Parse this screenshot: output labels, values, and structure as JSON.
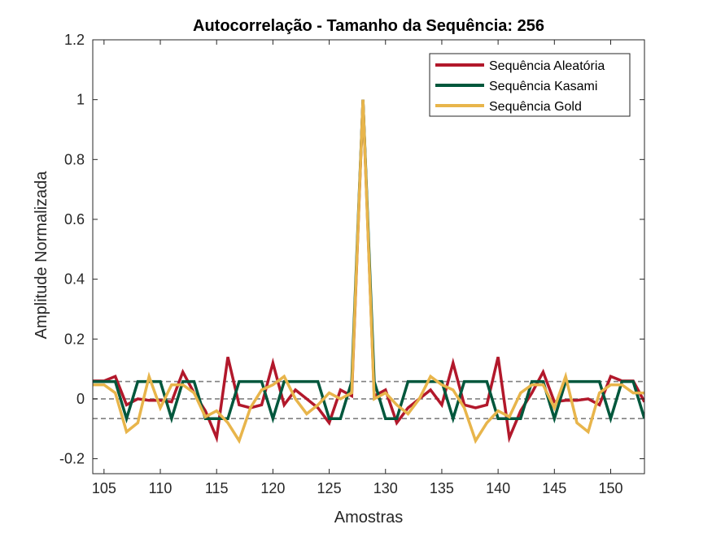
{
  "chart_data": {
    "type": "line",
    "title": "Autocorrelação - Tamanho da Sequência: 256",
    "xlabel": "Amostras",
    "ylabel": "Amplitude Normalizada",
    "xlim": [
      104,
      153
    ],
    "ylim": [
      -0.25,
      1.2
    ],
    "xticks": [
      105,
      110,
      115,
      120,
      125,
      130,
      135,
      140,
      145,
      150
    ],
    "yticks": [
      -0.2,
      0,
      0.2,
      0.4,
      0.6,
      0.8,
      1,
      1.2
    ],
    "ytick_labels": [
      "-0.2",
      "0",
      "0.2",
      "0.4",
      "0.6",
      "0.8",
      "1",
      "1.2"
    ],
    "grid": false,
    "legend_position": "top-right",
    "x": [
      104,
      105,
      106,
      107,
      108,
      109,
      110,
      111,
      112,
      113,
      114,
      115,
      116,
      117,
      118,
      119,
      120,
      121,
      122,
      123,
      124,
      125,
      126,
      127,
      128,
      129,
      130,
      131,
      132,
      133,
      134,
      135,
      136,
      137,
      138,
      139,
      140,
      141,
      142,
      143,
      144,
      145,
      146,
      147,
      148,
      149,
      150,
      151,
      152,
      153
    ],
    "series": [
      {
        "name": "Sequência Aleatória",
        "color": "#b2182b",
        "values": [
          0.06,
          0.06,
          0.075,
          -0.02,
          0.0,
          -0.005,
          -0.005,
          -0.01,
          0.09,
          0.02,
          -0.04,
          -0.13,
          0.14,
          -0.02,
          -0.03,
          -0.02,
          0.12,
          -0.02,
          0.03,
          0.0,
          -0.03,
          -0.08,
          0.03,
          0.01,
          1.0,
          0.01,
          0.03,
          -0.08,
          -0.03,
          0.0,
          0.03,
          -0.02,
          0.12,
          -0.02,
          -0.03,
          -0.02,
          0.14,
          -0.13,
          -0.04,
          0.02,
          0.09,
          -0.01,
          -0.005,
          -0.005,
          0.0,
          -0.02,
          0.075,
          0.06,
          0.06,
          -0.01
        ]
      },
      {
        "name": "Sequência Kasami",
        "color": "#00573c",
        "values": [
          0.058,
          0.058,
          0.058,
          -0.066,
          0.058,
          0.058,
          0.058,
          -0.066,
          0.058,
          0.058,
          -0.066,
          -0.066,
          -0.066,
          0.058,
          0.058,
          0.058,
          -0.066,
          0.058,
          0.058,
          0.058,
          0.058,
          -0.066,
          -0.066,
          0.058,
          1.0,
          0.058,
          -0.066,
          -0.066,
          0.058,
          0.058,
          0.058,
          0.058,
          -0.066,
          0.058,
          0.058,
          0.058,
          -0.066,
          -0.066,
          -0.066,
          0.058,
          0.058,
          -0.066,
          0.058,
          0.058,
          0.058,
          0.058,
          -0.066,
          0.058,
          0.058,
          -0.066
        ]
      },
      {
        "name": "Sequência Gold",
        "color": "#e8b54b",
        "values": [
          0.047,
          0.047,
          0.02,
          -0.11,
          -0.08,
          0.075,
          -0.03,
          0.047,
          0.047,
          0.02,
          -0.06,
          -0.04,
          -0.08,
          -0.14,
          -0.03,
          0.03,
          0.047,
          0.075,
          0.0,
          -0.05,
          -0.02,
          0.02,
          0.0,
          0.02,
          1.0,
          0.0,
          0.02,
          -0.02,
          -0.05,
          0.0,
          0.075,
          0.047,
          0.03,
          -0.03,
          -0.14,
          -0.08,
          -0.04,
          -0.06,
          0.02,
          0.047,
          0.047,
          -0.03,
          0.075,
          -0.08,
          -0.11,
          0.02,
          0.047,
          0.047,
          0.02,
          0.02
        ]
      }
    ],
    "reference_lines": [
      0.058,
      0.0,
      -0.066
    ]
  }
}
